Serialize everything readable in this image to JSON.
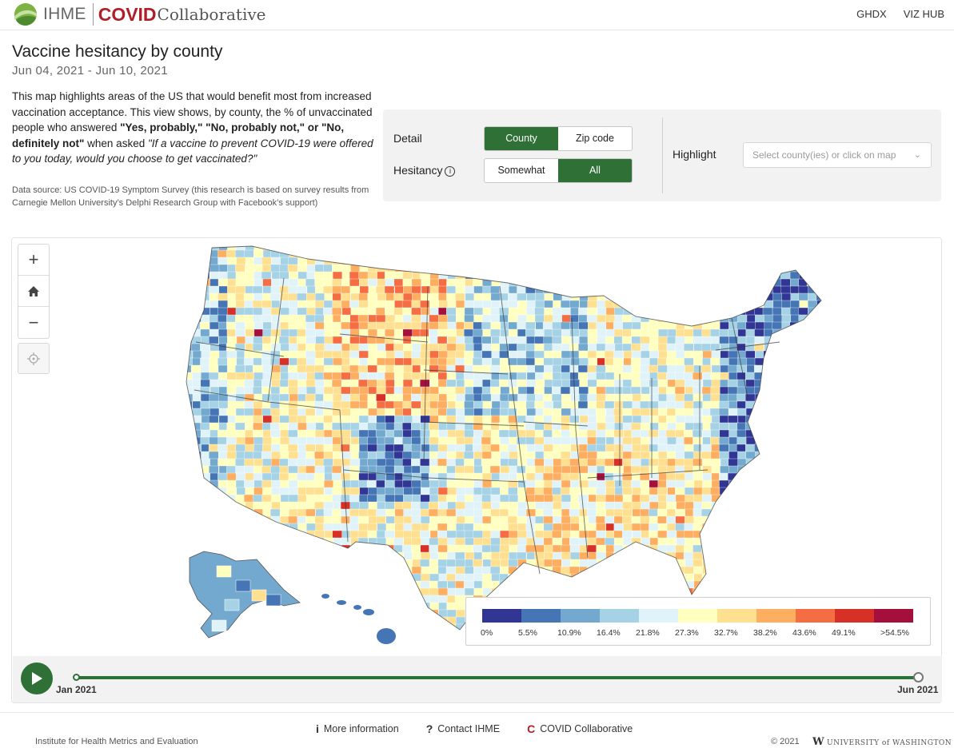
{
  "header": {
    "brand_primary": "IHME",
    "brand_covid": "COVID",
    "brand_collab": "Collaborative",
    "nav": [
      "GHDX",
      "VIZ HUB"
    ]
  },
  "page": {
    "title": "Vaccine hesitancy by county",
    "date_range": "Jun 04, 2021 - Jun 10, 2021",
    "description_parts": {
      "p1": "This map highlights areas of the US that would benefit most from increased vaccination acceptance. This view shows, by county, the % of unvaccinated people who answered ",
      "b1": "\"Yes, probably,\" \"No, probably not,\" or \"No, definitely not\"",
      "p2": " when asked ",
      "q": "\"If a vaccine to prevent COVID-19 were offered to you today, would you choose to get vaccinated?\""
    },
    "datasource": "Data source: US COVID-19 Symptom Survey (this research is based on survey results from Carnegie Mellon University’s Delphi Research Group with Facebook’s support)"
  },
  "controls": {
    "detail_label": "Detail",
    "detail_options": [
      "County",
      "Zip code"
    ],
    "detail_selected": "County",
    "hesitancy_label": "Hesitancy",
    "hesitancy_options": [
      "Somewhat",
      "All"
    ],
    "hesitancy_selected": "All",
    "highlight_label": "Highlight",
    "highlight_placeholder": "Select county(ies) or click on map"
  },
  "map": {
    "zoom_buttons": [
      "+",
      "home",
      "−"
    ],
    "legend": {
      "colors": [
        "#313695",
        "#4575b4",
        "#74a9cf",
        "#a6d2e6",
        "#e0f3f8",
        "#ffffbf",
        "#fee090",
        "#fdae61",
        "#f46d43",
        "#d73027",
        "#a50f3c"
      ],
      "labels": [
        "0%",
        "5.5%",
        "10.9%",
        "16.4%",
        "21.8%",
        "27.3%",
        "32.7%",
        "38.2%",
        "43.6%",
        "49.1%",
        ">54.5%"
      ]
    }
  },
  "timeline": {
    "start_label": "Jan 2021",
    "end_label": "Jun 2021",
    "position": 1.0
  },
  "footer": {
    "links": [
      "More information",
      "Contact IHME",
      "COVID Collaborative"
    ],
    "institute": "Institute for Health Metrics and Evaluation",
    "copyright": "© 2021",
    "uw_mark": "W",
    "uw_text": "UNIVERSITY of WASHINGTON"
  }
}
